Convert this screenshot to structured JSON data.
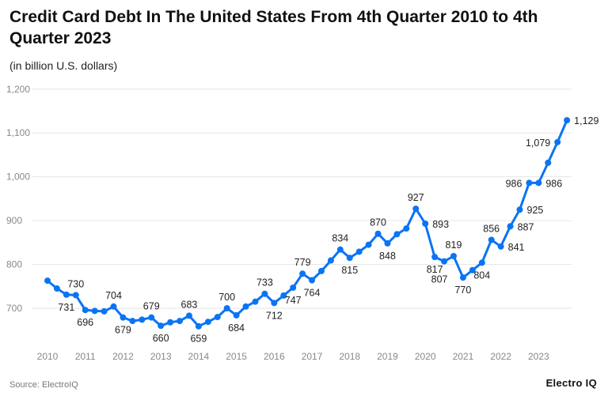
{
  "chart_data": {
    "type": "line",
    "title": "Credit Card Debt In The United States From 4th Quarter 2010 to 4th Quarter 2023",
    "subtitle": "(in billion U.S. dollars)",
    "xlabel": "",
    "ylabel": "",
    "ylim": [
      700,
      1200
    ],
    "yticks": [
      "700",
      "800",
      "900",
      "1,000",
      "1,100",
      "1,200"
    ],
    "ytick_values": [
      700,
      800,
      900,
      1000,
      1100,
      1200
    ],
    "xticks": [
      "2010",
      "2011",
      "2012",
      "2013",
      "2014",
      "2015",
      "2016",
      "2017",
      "2018",
      "2019",
      "2020",
      "2021",
      "2022",
      "2023"
    ],
    "grid": true,
    "color": "#0a74f5",
    "series": [
      {
        "name": "Credit card debt",
        "values": [
          763,
          745,
          731,
          730,
          696,
          694,
          693,
          704,
          679,
          671,
          674,
          679,
          660,
          668,
          671,
          683,
          659,
          669,
          680,
          700,
          684,
          704,
          715,
          733,
          712,
          729,
          747,
          779,
          764,
          785,
          809,
          834,
          815,
          829,
          845,
          870,
          848,
          869,
          882,
          927,
          893,
          817,
          807,
          819,
          770,
          787,
          804,
          856,
          841,
          887,
          925,
          986,
          986,
          1032,
          1079,
          1129
        ]
      }
    ],
    "data_labels": [
      {
        "index": 2,
        "text": "731",
        "pos": "below"
      },
      {
        "index": 3,
        "text": "730",
        "pos": "above"
      },
      {
        "index": 4,
        "text": "696",
        "pos": "below"
      },
      {
        "index": 7,
        "text": "704",
        "pos": "above"
      },
      {
        "index": 8,
        "text": "679",
        "pos": "below"
      },
      {
        "index": 11,
        "text": "679",
        "pos": "above"
      },
      {
        "index": 12,
        "text": "660",
        "pos": "below"
      },
      {
        "index": 15,
        "text": "683",
        "pos": "above"
      },
      {
        "index": 16,
        "text": "659",
        "pos": "below"
      },
      {
        "index": 19,
        "text": "700",
        "pos": "above"
      },
      {
        "index": 20,
        "text": "684",
        "pos": "below"
      },
      {
        "index": 23,
        "text": "733",
        "pos": "above"
      },
      {
        "index": 24,
        "text": "712",
        "pos": "below"
      },
      {
        "index": 26,
        "text": "747",
        "pos": "below"
      },
      {
        "index": 27,
        "text": "779",
        "pos": "above"
      },
      {
        "index": 28,
        "text": "764",
        "pos": "below"
      },
      {
        "index": 31,
        "text": "834",
        "pos": "above"
      },
      {
        "index": 32,
        "text": "815",
        "pos": "below"
      },
      {
        "index": 35,
        "text": "870",
        "pos": "above"
      },
      {
        "index": 36,
        "text": "848",
        "pos": "below"
      },
      {
        "index": 39,
        "text": "927",
        "pos": "above"
      },
      {
        "index": 40,
        "text": "893",
        "pos": "right"
      },
      {
        "index": 41,
        "text": "817",
        "pos": "below"
      },
      {
        "index": 42,
        "text": "807",
        "pos": "below2"
      },
      {
        "index": 43,
        "text": "819",
        "pos": "above"
      },
      {
        "index": 44,
        "text": "770",
        "pos": "below"
      },
      {
        "index": 46,
        "text": "804",
        "pos": "below"
      },
      {
        "index": 47,
        "text": "856",
        "pos": "above"
      },
      {
        "index": 48,
        "text": "841",
        "pos": "right"
      },
      {
        "index": 49,
        "text": "887",
        "pos": "right"
      },
      {
        "index": 50,
        "text": "925",
        "pos": "right"
      },
      {
        "index": 51,
        "text": "986",
        "pos": "left"
      },
      {
        "index": 52,
        "text": "986",
        "pos": "right"
      },
      {
        "index": 54,
        "text": "1,079",
        "pos": "left"
      },
      {
        "index": 55,
        "text": "1,129",
        "pos": "right"
      }
    ]
  },
  "footer": {
    "source": "Source: ElectroIQ",
    "brand": "Electro IQ"
  }
}
